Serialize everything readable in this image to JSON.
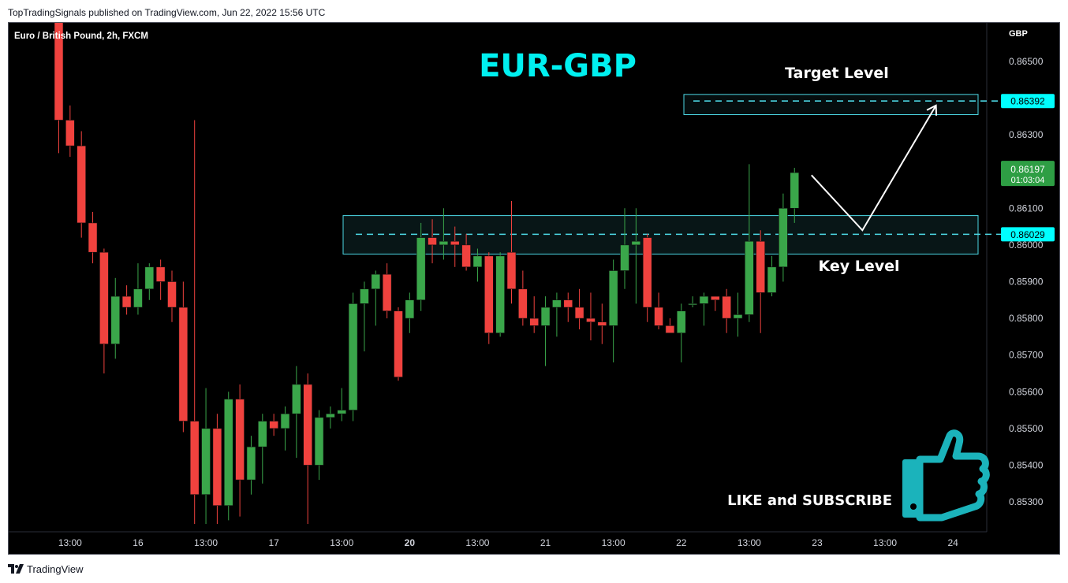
{
  "header": {
    "published": "TopTradingSignals published on TradingView.com, Jun 22, 2022 15:56 UTC"
  },
  "footer": {
    "brand": "TradingView"
  },
  "chart_data": {
    "type": "candlestick",
    "symbol_title": "Euro / British Pound, 2h, FXCM",
    "headline": "EUR-GBP",
    "currency": "GBP",
    "ylim": [
      0.8524,
      0.8662
    ],
    "y_ticks": [
      0.853,
      0.854,
      0.855,
      0.856,
      0.857,
      0.858,
      0.859,
      0.86,
      0.861,
      0.863,
      0.865
    ],
    "x_labels": [
      {
        "index": 1,
        "label": "13:00",
        "bold": false
      },
      {
        "index": 7,
        "label": "16",
        "bold": false
      },
      {
        "index": 13,
        "label": "13:00",
        "bold": false
      },
      {
        "index": 19,
        "label": "17",
        "bold": false
      },
      {
        "index": 25,
        "label": "13:00",
        "bold": false
      },
      {
        "index": 31,
        "label": "20",
        "bold": true
      },
      {
        "index": 37,
        "label": "13:00",
        "bold": false
      },
      {
        "index": 43,
        "label": "21",
        "bold": false
      },
      {
        "index": 49,
        "label": "13:00",
        "bold": false
      },
      {
        "index": 55,
        "label": "22",
        "bold": false
      },
      {
        "index": 61,
        "label": "13:00",
        "bold": false
      },
      {
        "index": 67,
        "label": "23",
        "bold": false
      },
      {
        "index": 73,
        "label": "13:00",
        "bold": false
      },
      {
        "index": 79,
        "label": "24",
        "bold": false
      }
    ],
    "candles": [
      {
        "o": 0.868,
        "h": 0.868,
        "l": 0.8625,
        "c": 0.8634
      },
      {
        "o": 0.8634,
        "h": 0.8638,
        "l": 0.8624,
        "c": 0.8627
      },
      {
        "o": 0.8627,
        "h": 0.8631,
        "l": 0.8602,
        "c": 0.8606
      },
      {
        "o": 0.8606,
        "h": 0.8609,
        "l": 0.8595,
        "c": 0.8598
      },
      {
        "o": 0.8598,
        "h": 0.8599,
        "l": 0.8565,
        "c": 0.8573
      },
      {
        "o": 0.8573,
        "h": 0.8591,
        "l": 0.8569,
        "c": 0.8586
      },
      {
        "o": 0.8586,
        "h": 0.8589,
        "l": 0.8581,
        "c": 0.8583
      },
      {
        "o": 0.8583,
        "h": 0.8595,
        "l": 0.8581,
        "c": 0.8588
      },
      {
        "o": 0.8588,
        "h": 0.8595,
        "l": 0.8585,
        "c": 0.8594
      },
      {
        "o": 0.8594,
        "h": 0.8596,
        "l": 0.8585,
        "c": 0.859
      },
      {
        "o": 0.859,
        "h": 0.8593,
        "l": 0.8579,
        "c": 0.8583
      },
      {
        "o": 0.8583,
        "h": 0.859,
        "l": 0.8549,
        "c": 0.8552
      },
      {
        "o": 0.8552,
        "h": 0.8634,
        "l": 0.8524,
        "c": 0.8532
      },
      {
        "o": 0.8532,
        "h": 0.8561,
        "l": 0.8524,
        "c": 0.855
      },
      {
        "o": 0.855,
        "h": 0.8554,
        "l": 0.8524,
        "c": 0.8529
      },
      {
        "o": 0.8529,
        "h": 0.856,
        "l": 0.8525,
        "c": 0.8558
      },
      {
        "o": 0.8558,
        "h": 0.8562,
        "l": 0.8526,
        "c": 0.8536
      },
      {
        "o": 0.8536,
        "h": 0.8548,
        "l": 0.8532,
        "c": 0.8545
      },
      {
        "o": 0.8545,
        "h": 0.8554,
        "l": 0.8535,
        "c": 0.8552
      },
      {
        "o": 0.8552,
        "h": 0.8554,
        "l": 0.8548,
        "c": 0.855
      },
      {
        "o": 0.855,
        "h": 0.8556,
        "l": 0.8544,
        "c": 0.8554
      },
      {
        "o": 0.8554,
        "h": 0.8567,
        "l": 0.8542,
        "c": 0.8562
      },
      {
        "o": 0.8562,
        "h": 0.8565,
        "l": 0.8524,
        "c": 0.854
      },
      {
        "o": 0.854,
        "h": 0.8555,
        "l": 0.8536,
        "c": 0.8553
      },
      {
        "o": 0.8553,
        "h": 0.8556,
        "l": 0.855,
        "c": 0.8554
      },
      {
        "o": 0.8554,
        "h": 0.8561,
        "l": 0.8552,
        "c": 0.8555
      },
      {
        "o": 0.8555,
        "h": 0.8587,
        "l": 0.8552,
        "c": 0.8584
      },
      {
        "o": 0.8584,
        "h": 0.859,
        "l": 0.8571,
        "c": 0.8588
      },
      {
        "o": 0.8588,
        "h": 0.8593,
        "l": 0.8578,
        "c": 0.8592
      },
      {
        "o": 0.8592,
        "h": 0.8595,
        "l": 0.858,
        "c": 0.8582
      },
      {
        "o": 0.8582,
        "h": 0.8583,
        "l": 0.8563,
        "c": 0.8564
      },
      {
        "o": 0.858,
        "h": 0.8587,
        "l": 0.8576,
        "c": 0.8585
      },
      {
        "o": 0.8585,
        "h": 0.8606,
        "l": 0.8582,
        "c": 0.8602
      },
      {
        "o": 0.8602,
        "h": 0.8607,
        "l": 0.8595,
        "c": 0.86
      },
      {
        "o": 0.86,
        "h": 0.861,
        "l": 0.8596,
        "c": 0.8601
      },
      {
        "o": 0.8601,
        "h": 0.8605,
        "l": 0.8594,
        "c": 0.86
      },
      {
        "o": 0.86,
        "h": 0.8603,
        "l": 0.8593,
        "c": 0.8594
      },
      {
        "o": 0.8594,
        "h": 0.8599,
        "l": 0.859,
        "c": 0.8597
      },
      {
        "o": 0.8597,
        "h": 0.8598,
        "l": 0.8573,
        "c": 0.8576
      },
      {
        "o": 0.8576,
        "h": 0.8598,
        "l": 0.8575,
        "c": 0.8597
      },
      {
        "o": 0.8598,
        "h": 0.8612,
        "l": 0.8584,
        "c": 0.8588
      },
      {
        "o": 0.8588,
        "h": 0.8593,
        "l": 0.8578,
        "c": 0.858
      },
      {
        "o": 0.858,
        "h": 0.8586,
        "l": 0.8576,
        "c": 0.8578
      },
      {
        "o": 0.8578,
        "h": 0.8586,
        "l": 0.8567,
        "c": 0.8583
      },
      {
        "o": 0.8583,
        "h": 0.8587,
        "l": 0.8575,
        "c": 0.8585
      },
      {
        "o": 0.8585,
        "h": 0.8587,
        "l": 0.8579,
        "c": 0.8583
      },
      {
        "o": 0.8583,
        "h": 0.8588,
        "l": 0.8577,
        "c": 0.858
      },
      {
        "o": 0.858,
        "h": 0.8587,
        "l": 0.8574,
        "c": 0.8579
      },
      {
        "o": 0.8579,
        "h": 0.8584,
        "l": 0.8573,
        "c": 0.8578
      },
      {
        "o": 0.8578,
        "h": 0.8596,
        "l": 0.8568,
        "c": 0.8593
      },
      {
        "o": 0.8593,
        "h": 0.861,
        "l": 0.8588,
        "c": 0.86
      },
      {
        "o": 0.86,
        "h": 0.861,
        "l": 0.8584,
        "c": 0.8601
      },
      {
        "o": 0.8602,
        "h": 0.8603,
        "l": 0.8579,
        "c": 0.8583
      },
      {
        "o": 0.8583,
        "h": 0.8587,
        "l": 0.8577,
        "c": 0.8578
      },
      {
        "o": 0.8578,
        "h": 0.858,
        "l": 0.8576,
        "c": 0.8576
      },
      {
        "o": 0.8576,
        "h": 0.8584,
        "l": 0.8568,
        "c": 0.8582
      },
      {
        "o": 0.8584,
        "h": 0.8586,
        "l": 0.8583,
        "c": 0.8584
      },
      {
        "o": 0.8584,
        "h": 0.8587,
        "l": 0.8578,
        "c": 0.8586
      },
      {
        "o": 0.8586,
        "h": 0.8586,
        "l": 0.8582,
        "c": 0.8585
      },
      {
        "o": 0.8586,
        "h": 0.8588,
        "l": 0.8576,
        "c": 0.858
      },
      {
        "o": 0.858,
        "h": 0.8587,
        "l": 0.8575,
        "c": 0.8581
      },
      {
        "o": 0.8581,
        "h": 0.8622,
        "l": 0.8579,
        "c": 0.8601
      },
      {
        "o": 0.8601,
        "h": 0.8604,
        "l": 0.8576,
        "c": 0.8587
      },
      {
        "o": 0.8587,
        "h": 0.8597,
        "l": 0.8586,
        "c": 0.8594
      },
      {
        "o": 0.8594,
        "h": 0.8614,
        "l": 0.859,
        "c": 0.861
      },
      {
        "o": 0.861,
        "h": 0.8621,
        "l": 0.8606,
        "c": 0.86197
      }
    ],
    "key_level": {
      "value": 0.86029,
      "label": "Key Level",
      "zone": [
        0.85975,
        0.8608
      ]
    },
    "target_level": {
      "value": 0.86392,
      "label": "Target Level",
      "zone": [
        0.86355,
        0.8641
      ]
    },
    "last_price": {
      "value": "0.86197",
      "countdown": "01:03:04"
    },
    "projection": [
      {
        "index": 66.5,
        "price": 0.8619
      },
      {
        "index": 71.0,
        "price": 0.8604
      },
      {
        "index": 77.5,
        "price": 0.8638
      }
    ],
    "cta_text": "LIKE and SUBSCRIBE",
    "colors": {
      "background": "#000000",
      "up": "#3aa64a",
      "down": "#f0423e",
      "zone": "#4dd9e6",
      "price_label": "#00ffff",
      "headline": "#00f0f0",
      "thumb": "#1bb3bb"
    }
  }
}
